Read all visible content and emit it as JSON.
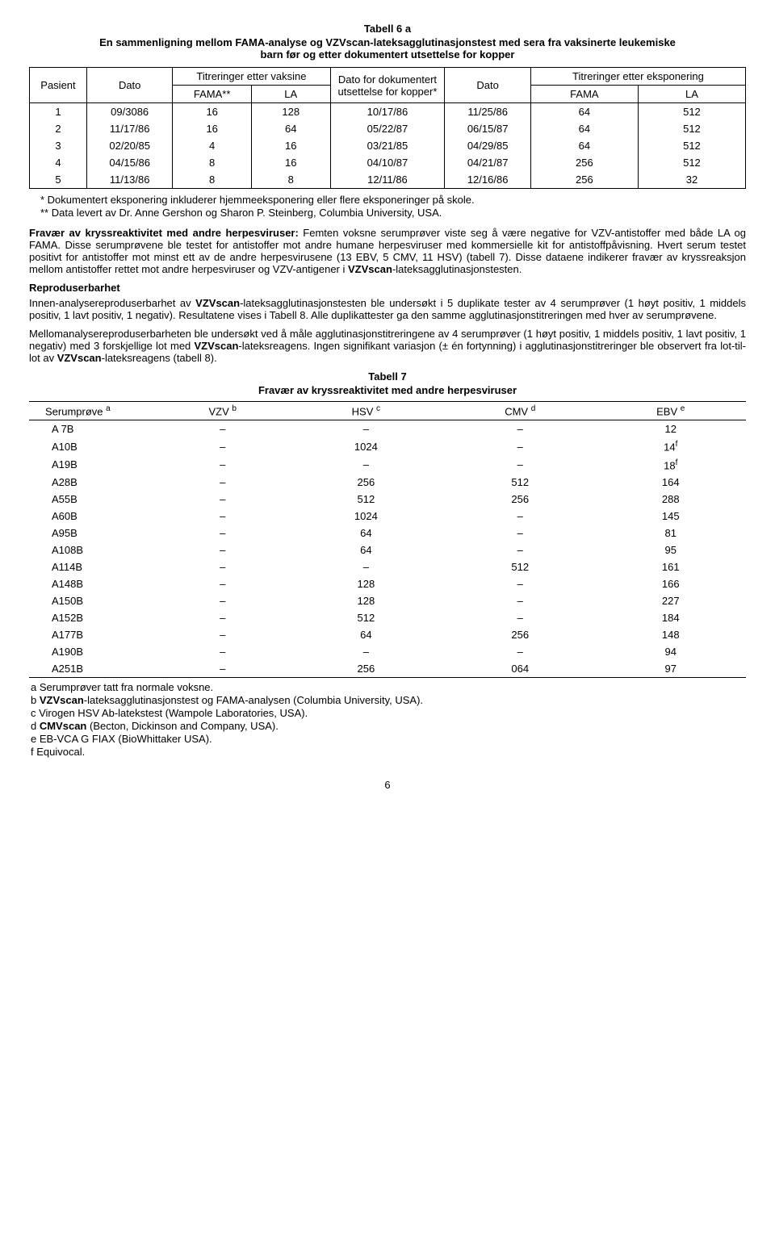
{
  "tab6a": {
    "title": "Tabell 6 a",
    "caption": "En sammenligning mellom FAMA-analyse og VZVscan-lateksagglutinasjonstest med sera fra vaksinerte leukemiske barn før og etter dokumentert utsettelse for kopper",
    "headers": {
      "pasient": "Pasient",
      "dato1": "Dato",
      "titr_vaksine": "Titreringer etter vaksine",
      "fama_star": "FAMA**",
      "la1": "LA",
      "dato_utsettelse": "Dato for dokumentert utsettelse for kopper*",
      "dato2": "Dato",
      "titr_eksp": "Titreringer etter eksponering",
      "fama": "FAMA",
      "la2": "LA"
    },
    "rows": [
      {
        "p": "1",
        "d1": "09/3086",
        "f1": "16",
        "la1": "128",
        "d2": "10/17/86",
        "d3": "11/25/86",
        "f2": "64",
        "la2": "512"
      },
      {
        "p": "2",
        "d1": "11/17/86",
        "f1": "16",
        "la1": "64",
        "d2": "05/22/87",
        "d3": "06/15/87",
        "f2": "64",
        "la2": "512"
      },
      {
        "p": "3",
        "d1": "02/20/85",
        "f1": "4",
        "la1": "16",
        "d2": "03/21/85",
        "d3": "04/29/85",
        "f2": "64",
        "la2": "512"
      },
      {
        "p": "4",
        "d1": "04/15/86",
        "f1": "8",
        "la1": "16",
        "d2": "04/10/87",
        "d3": "04/21/87",
        "f2": "256",
        "la2": "512"
      },
      {
        "p": "5",
        "d1": "11/13/86",
        "f1": "8",
        "la1": "8",
        "d2": "12/11/86",
        "d3": "12/16/86",
        "f2": "256",
        "la2": "32"
      }
    ],
    "notes": {
      "n1": "*  Dokumentert eksponering inkluderer hjemmeeksponering eller flere eksponeringer på skole.",
      "n2": "** Data levert av Dr. Anne Gershon og Sharon P. Steinberg, Columbia University, USA."
    }
  },
  "para": {
    "fravaer_label": "Fravær av kryssreaktivitet med andre herpesviruser:",
    "fravaer_body": " Femten voksne serumprøver viste seg å være negative for VZV-antistoffer med både LA og FAMA. Disse serumprøvene ble testet for antistoffer mot andre humane herpesviruser med kommersielle kit for antistoffpåvisning. Hvert serum testet positivt for antistoffer mot minst ett av de andre herpesvirusene (13 EBV, 5 CMV, 11 HSV) (tabell 7). Disse dataene indikerer fravær av kryssreaksjon mellom antistoffer rettet mot andre herpesviruser og VZV-antigener i ",
    "fravaer_tail": "-lateksagglutinasjonstesten.",
    "vzvscan": "VZVscan",
    "repro_head": "Reproduserbarhet",
    "repro1a": "Innen-analysereproduserbarhet av ",
    "repro1b": "-lateksagglutinasjonstesten ble undersøkt i 5 duplikate tester av 4 serumprøver (1 høyt positiv, 1 middels positiv, 1 lavt positiv, 1 negativ). Resultatene vises i Tabell 8. Alle duplikattester ga den samme agglutinasjonstitreringen med hver av serumprøvene.",
    "repro2a": "Mellomanalysereproduserbarheten ble undersøkt ved å måle agglutinasjonstitreringene av 4 serumprøver (1 høyt positiv, 1 middels positiv, 1 lavt positiv, 1 negativ) med 3 forskjellige lot med ",
    "repro2b": "-lateksreagens. Ingen signifikant variasjon (± én fortynning) i agglutinasjonstitreringer ble observert fra lot-til-lot av ",
    "repro2c": "-lateksreagens (tabell 8)."
  },
  "tab7": {
    "title": "Tabell 7",
    "caption": "Fravær av kryssreaktivitet med andre herpesviruser",
    "headers": {
      "serum": "Serumprøve",
      "vzv": "VZV",
      "hsv": "HSV",
      "cmv": "CMV",
      "ebv": "EBV",
      "sup_a": "a",
      "sup_b": "b",
      "sup_c": "c",
      "sup_d": "d",
      "sup_e": "e",
      "sup_f": "f"
    },
    "rows": [
      {
        "s": "A 7B",
        "vzv": "–",
        "hsv": "–",
        "cmv": "–",
        "ebv": "12",
        "ebv_sup": ""
      },
      {
        "s": "A10B",
        "vzv": "–",
        "hsv": "1024",
        "cmv": "–",
        "ebv": "14",
        "ebv_sup": "f"
      },
      {
        "s": "A19B",
        "vzv": "–",
        "hsv": "–",
        "cmv": "–",
        "ebv": "18",
        "ebv_sup": "f"
      },
      {
        "s": "A28B",
        "vzv": "–",
        "hsv": "256",
        "cmv": "512",
        "ebv": "164",
        "ebv_sup": ""
      },
      {
        "s": "A55B",
        "vzv": "–",
        "hsv": "512",
        "cmv": "256",
        "ebv": "288",
        "ebv_sup": ""
      },
      {
        "s": "A60B",
        "vzv": "–",
        "hsv": "1024",
        "cmv": "–",
        "ebv": "145",
        "ebv_sup": ""
      },
      {
        "s": "A95B",
        "vzv": "–",
        "hsv": "64",
        "cmv": "–",
        "ebv": "81",
        "ebv_sup": ""
      },
      {
        "s": "A108B",
        "vzv": "–",
        "hsv": "64",
        "cmv": "–",
        "ebv": "95",
        "ebv_sup": ""
      },
      {
        "s": "A114B",
        "vzv": "–",
        "hsv": "–",
        "cmv": "512",
        "ebv": "161",
        "ebv_sup": ""
      },
      {
        "s": "A148B",
        "vzv": "–",
        "hsv": "128",
        "cmv": "–",
        "ebv": "166",
        "ebv_sup": ""
      },
      {
        "s": "A150B",
        "vzv": "–",
        "hsv": "128",
        "cmv": "–",
        "ebv": "227",
        "ebv_sup": ""
      },
      {
        "s": "A152B",
        "vzv": "–",
        "hsv": "512",
        "cmv": "–",
        "ebv": "184",
        "ebv_sup": ""
      },
      {
        "s": "A177B",
        "vzv": "–",
        "hsv": "64",
        "cmv": "256",
        "ebv": "148",
        "ebv_sup": ""
      },
      {
        "s": "A190B",
        "vzv": "–",
        "hsv": "–",
        "cmv": "–",
        "ebv": "94",
        "ebv_sup": ""
      },
      {
        "s": "A251B",
        "vzv": "–",
        "hsv": "256",
        "cmv": "064",
        "ebv": "97",
        "ebv_sup": ""
      }
    ],
    "notes": {
      "a": "a   Serumprøver tatt fra normale voksne.",
      "b_pre": "b   ",
      "b_bold": "VZVscan",
      "b_post": "-lateksagglutinasjonstest og FAMA-analysen (Columbia University, USA).",
      "c": "c   Virogen HSV Ab-latekstest (Wampole Laboratories, USA).",
      "d_pre": "d   ",
      "d_bold": "CMVscan",
      "d_post": " (Becton, Dickinson and Company, USA).",
      "e": "e   EB-VCA G FIAX (BioWhittaker USA).",
      "f": "f   Equivocal."
    }
  },
  "pagenum": "6"
}
